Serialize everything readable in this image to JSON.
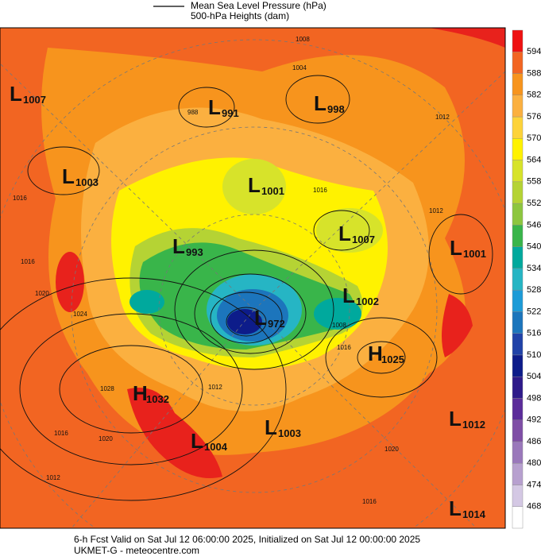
{
  "legend": {
    "line1": "Mean Sea Level Pressure (hPa)",
    "line2": "500-hPa Heights (dam)"
  },
  "colorbar": {
    "levels": [
      468,
      474,
      480,
      486,
      492,
      498,
      504,
      510,
      516,
      522,
      528,
      534,
      540,
      546,
      552,
      558,
      564,
      570,
      576,
      582,
      588,
      594
    ],
    "colors": [
      "#ffffff",
      "#d4c8e4",
      "#b7a0cf",
      "#9a78bb",
      "#7f4ea6",
      "#5b2c9a",
      "#2e1a8a",
      "#0d1c8a",
      "#2042a8",
      "#1c75bc",
      "#1d9bd7",
      "#26b5c4",
      "#00a99d",
      "#39b54a",
      "#8dc63f",
      "#b5d334",
      "#d7e32a",
      "#fff200",
      "#fdd33a",
      "#fbb040",
      "#f7941d",
      "#f26522",
      "#ee1111"
    ]
  },
  "centers": [
    {
      "letter": "L",
      "value": 1007
    },
    {
      "letter": "L",
      "value": 991
    },
    {
      "letter": "L",
      "value": 998
    },
    {
      "letter": "L",
      "value": 1003
    },
    {
      "letter": "L",
      "value": 1001
    },
    {
      "letter": "L",
      "value": 1007
    },
    {
      "letter": "L",
      "value": 1001
    },
    {
      "letter": "L",
      "value": 993
    },
    {
      "letter": "L",
      "value": 1002
    },
    {
      "letter": "L",
      "value": 972
    },
    {
      "letter": "H",
      "value": 1025
    },
    {
      "letter": "H",
      "value": 1032
    },
    {
      "letter": "L",
      "value": 1012
    },
    {
      "letter": "L",
      "value": 1004
    },
    {
      "letter": "L",
      "value": 1003
    },
    {
      "letter": "L",
      "value": 1014
    }
  ],
  "contour_labels": [
    1008,
    1004,
    988,
    1012,
    1016,
    1012,
    1016,
    1016,
    1020,
    1024,
    1028,
    1016,
    1020,
    1012,
    1016,
    1008,
    1020,
    1016,
    1012
  ],
  "footer": {
    "line1": "6-h Fcst Valid on Sat Jul 12 06:00:00 2025, Initialized on Sat Jul 12 00:00:00 2025",
    "line2": "UKMET-G  - meteocentre.com"
  }
}
